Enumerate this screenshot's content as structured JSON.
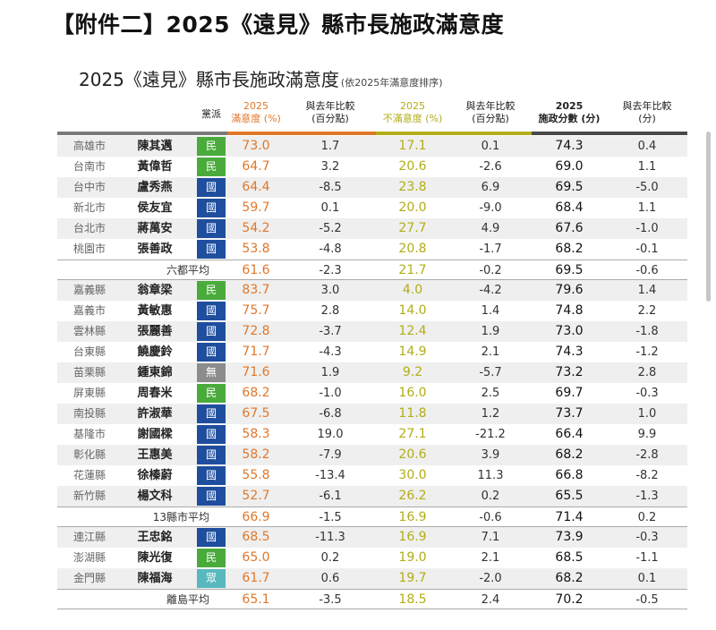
{
  "page_title": "【附件二】2025《遠見》縣市長施政滿意度",
  "subtitle": "2025《遠見》縣市長施政滿意度",
  "subtitle_note": "(依2025年滿意度排序)",
  "headers": {
    "party": "黨派",
    "sat": [
      "2025",
      "滿意度 (%)"
    ],
    "sat_diff": [
      "與去年比較",
      "(百分點)"
    ],
    "dis": [
      "2025",
      "不滿意度 (%)"
    ],
    "dis_diff": [
      "與去年比較",
      "(百分點)"
    ],
    "score": [
      "2025",
      "施政分數 (分)"
    ],
    "score_diff": [
      "與去年比較",
      "(分)"
    ]
  },
  "colors": {
    "kmt": "#1f4e9e",
    "dpp": "#4aab3c",
    "independent": "#8c8c8c",
    "tpp": "#58b8bd",
    "satisfaction": "#e0772a",
    "dissatisfaction": "#b3ad17"
  },
  "groups": [
    {
      "rows": [
        {
          "city": "高雄市",
          "name": "陳其邁",
          "party": "民",
          "party_color": "#4aab3c",
          "sat": "73.0",
          "sat_diff": "1.7",
          "dis": "17.1",
          "dis_diff": "0.1",
          "score": "74.3",
          "score_diff": "0.4"
        },
        {
          "city": "台南市",
          "name": "黃偉哲",
          "party": "民",
          "party_color": "#4aab3c",
          "sat": "64.7",
          "sat_diff": "3.2",
          "dis": "20.6",
          "dis_diff": "-2.6",
          "score": "69.0",
          "score_diff": "1.1"
        },
        {
          "city": "台中市",
          "name": "盧秀燕",
          "party": "國",
          "party_color": "#1f4e9e",
          "sat": "64.4",
          "sat_diff": "-8.5",
          "dis": "23.8",
          "dis_diff": "6.9",
          "score": "69.5",
          "score_diff": "-5.0"
        },
        {
          "city": "新北市",
          "name": "侯友宜",
          "party": "國",
          "party_color": "#1f4e9e",
          "sat": "59.7",
          "sat_diff": "0.1",
          "dis": "20.0",
          "dis_diff": "-9.0",
          "score": "68.4",
          "score_diff": "1.1"
        },
        {
          "city": "台北市",
          "name": "蔣萬安",
          "party": "國",
          "party_color": "#1f4e9e",
          "sat": "54.2",
          "sat_diff": "-5.2",
          "dis": "27.7",
          "dis_diff": "4.9",
          "score": "67.6",
          "score_diff": "-1.0"
        },
        {
          "city": "桃園市",
          "name": "張善政",
          "party": "國",
          "party_color": "#1f4e9e",
          "sat": "53.8",
          "sat_diff": "-4.8",
          "dis": "20.8",
          "dis_diff": "-1.7",
          "score": "68.2",
          "score_diff": "-0.1"
        }
      ],
      "average": {
        "label": "六都平均",
        "sat": "61.6",
        "sat_diff": "-2.3",
        "dis": "21.7",
        "dis_diff": "-0.2",
        "score": "69.5",
        "score_diff": "-0.6"
      }
    },
    {
      "rows": [
        {
          "city": "嘉義縣",
          "name": "翁章梁",
          "party": "民",
          "party_color": "#4aab3c",
          "sat": "83.7",
          "sat_diff": "3.0",
          "dis": "4.0",
          "dis_diff": "-4.2",
          "score": "79.6",
          "score_diff": "1.4"
        },
        {
          "city": "嘉義市",
          "name": "黃敏惠",
          "party": "國",
          "party_color": "#1f4e9e",
          "sat": "75.7",
          "sat_diff": "2.8",
          "dis": "14.0",
          "dis_diff": "1.4",
          "score": "74.8",
          "score_diff": "2.2"
        },
        {
          "city": "雲林縣",
          "name": "張麗善",
          "party": "國",
          "party_color": "#1f4e9e",
          "sat": "72.8",
          "sat_diff": "-3.7",
          "dis": "12.4",
          "dis_diff": "1.9",
          "score": "73.0",
          "score_diff": "-1.8"
        },
        {
          "city": "台東縣",
          "name": "饒慶鈴",
          "party": "國",
          "party_color": "#1f4e9e",
          "sat": "71.7",
          "sat_diff": "-4.3",
          "dis": "14.9",
          "dis_diff": "2.1",
          "score": "74.3",
          "score_diff": "-1.2"
        },
        {
          "city": "苗栗縣",
          "name": "鍾東錦",
          "party": "無",
          "party_color": "#8c8c8c",
          "sat": "71.6",
          "sat_diff": "1.9",
          "dis": "9.2",
          "dis_diff": "-5.7",
          "score": "73.2",
          "score_diff": "2.8"
        },
        {
          "city": "屏東縣",
          "name": "周春米",
          "party": "民",
          "party_color": "#4aab3c",
          "sat": "68.2",
          "sat_diff": "-1.0",
          "dis": "16.0",
          "dis_diff": "2.5",
          "score": "69.7",
          "score_diff": "-0.3"
        },
        {
          "city": "南投縣",
          "name": "許淑華",
          "party": "國",
          "party_color": "#1f4e9e",
          "sat": "67.5",
          "sat_diff": "-6.8",
          "dis": "11.8",
          "dis_diff": "1.2",
          "score": "73.7",
          "score_diff": "1.0"
        },
        {
          "city": "基隆市",
          "name": "謝國樑",
          "party": "國",
          "party_color": "#1f4e9e",
          "sat": "58.3",
          "sat_diff": "19.0",
          "dis": "27.1",
          "dis_diff": "-21.2",
          "score": "66.4",
          "score_diff": "9.9"
        },
        {
          "city": "彰化縣",
          "name": "王惠美",
          "party": "國",
          "party_color": "#1f4e9e",
          "sat": "58.2",
          "sat_diff": "-7.9",
          "dis": "20.6",
          "dis_diff": "3.9",
          "score": "68.2",
          "score_diff": "-2.8"
        },
        {
          "city": "花蓮縣",
          "name": "徐榛蔚",
          "party": "國",
          "party_color": "#1f4e9e",
          "sat": "55.8",
          "sat_diff": "-13.4",
          "dis": "30.0",
          "dis_diff": "11.3",
          "score": "66.8",
          "score_diff": "-8.2"
        },
        {
          "city": "新竹縣",
          "name": "楊文科",
          "party": "國",
          "party_color": "#1f4e9e",
          "sat": "52.7",
          "sat_diff": "-6.1",
          "dis": "26.2",
          "dis_diff": "0.2",
          "score": "65.5",
          "score_diff": "-1.3"
        }
      ],
      "average": {
        "label": "13縣市平均",
        "sat": "66.9",
        "sat_diff": "-1.5",
        "dis": "16.9",
        "dis_diff": "-0.6",
        "score": "71.4",
        "score_diff": "0.2"
      }
    },
    {
      "rows": [
        {
          "city": "連江縣",
          "name": "王忠銘",
          "party": "國",
          "party_color": "#1f4e9e",
          "sat": "68.5",
          "sat_diff": "-11.3",
          "dis": "16.9",
          "dis_diff": "7.1",
          "score": "73.9",
          "score_diff": "-0.3"
        },
        {
          "city": "澎湖縣",
          "name": "陳光復",
          "party": "民",
          "party_color": "#4aab3c",
          "sat": "65.0",
          "sat_diff": "0.2",
          "dis": "19.0",
          "dis_diff": "2.1",
          "score": "68.5",
          "score_diff": "-1.1"
        },
        {
          "city": "金門縣",
          "name": "陳福海",
          "party": "眾",
          "party_color": "#58b8bd",
          "sat": "61.7",
          "sat_diff": "0.6",
          "dis": "19.7",
          "dis_diff": "-2.0",
          "score": "68.2",
          "score_diff": "0.1"
        }
      ],
      "average": {
        "label": "離島平均",
        "sat": "65.1",
        "sat_diff": "-3.5",
        "dis": "18.5",
        "dis_diff": "2.4",
        "score": "70.2",
        "score_diff": "-0.5"
      }
    }
  ]
}
